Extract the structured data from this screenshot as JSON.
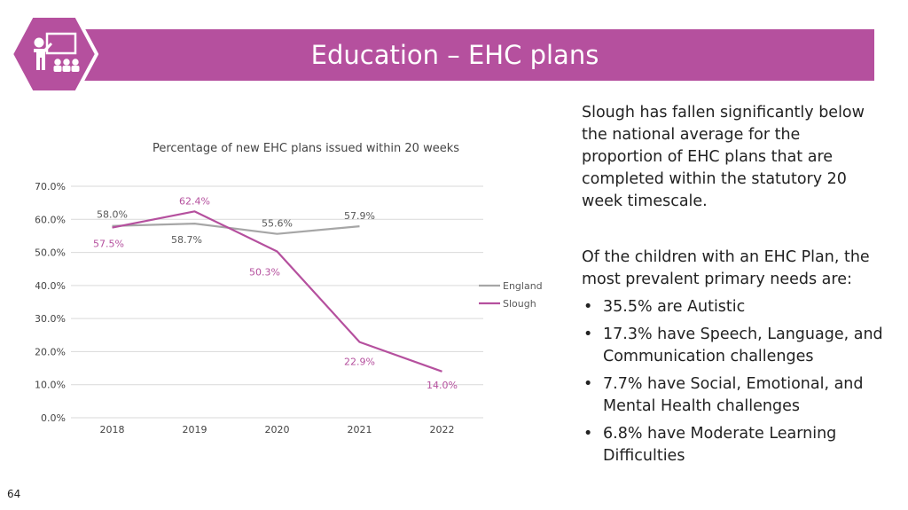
{
  "header": {
    "title": "Education – EHC plans",
    "color": "#b5509e"
  },
  "page_number": "64",
  "side": {
    "para1": "Slough has fallen significantly below the national average for the proportion of EHC plans that are completed within the statutory 20 week timescale.",
    "para2": "Of the children with an EHC Plan, the most prevalent primary needs are:",
    "bullets": [
      "35.5% are Autistic",
      "17.3% have Speech, Language, and Communication challenges",
      "7.7% have Social, Emotional, and Mental Health challenges",
      "6.8% have Moderate Learning Difficulties"
    ]
  },
  "chart_data": {
    "type": "line",
    "title": "Percentage of new EHC plans issued within 20 weeks",
    "categories": [
      "2018",
      "2019",
      "2020",
      "2021",
      "2022"
    ],
    "ylim": [
      0,
      70
    ],
    "yticks": [
      "0.0%",
      "10.0%",
      "20.0%",
      "30.0%",
      "40.0%",
      "50.0%",
      "60.0%",
      "70.0%"
    ],
    "grid": true,
    "legend": "right",
    "series": [
      {
        "name": "England",
        "color": "#a6a6a6",
        "values": [
          58.0,
          58.7,
          55.6,
          57.9,
          null
        ],
        "labels": [
          "58.0%",
          "58.7%",
          "55.6%",
          "57.9%",
          null
        ]
      },
      {
        "name": "Slough",
        "color": "#b5509e",
        "values": [
          57.5,
          62.4,
          50.3,
          22.9,
          14.0
        ],
        "labels": [
          "57.5%",
          "62.4%",
          "50.3%",
          "22.9%",
          "14.0%"
        ]
      }
    ]
  }
}
